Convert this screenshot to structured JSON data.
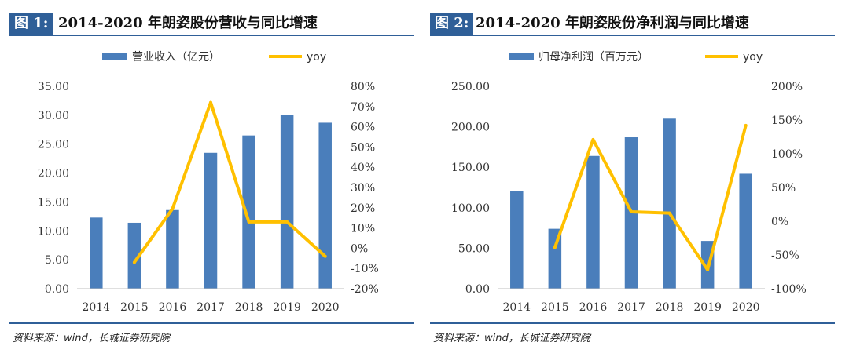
{
  "figures": [
    {
      "label": "图 1:",
      "title": "2014-2020 年朗姿股份营收与同比增速",
      "source": "资料来源：wind，长城证券研究院"
    },
    {
      "label": "图 2:",
      "title": "2014-2020 年朗姿股份净利润与同比增速",
      "source": "资料来源：wind，长城证券研究院"
    }
  ],
  "colors": {
    "bar": "#4a7ebb",
    "line": "#ffc000",
    "accent": "#2f5f98"
  },
  "chart_data": [
    {
      "type": "bar",
      "categories": [
        "2014",
        "2015",
        "2016",
        "2017",
        "2018",
        "2019",
        "2020"
      ],
      "series": [
        {
          "name": "营业收入（亿元）",
          "type": "bar",
          "axis": "left",
          "values": [
            12.3,
            11.4,
            13.6,
            23.5,
            26.5,
            30.0,
            28.7
          ]
        },
        {
          "name": "yoy",
          "type": "line",
          "axis": "right",
          "values": [
            null,
            -7.0,
            19.5,
            72.0,
            13.0,
            13.0,
            -4.0
          ]
        }
      ],
      "ylim": [
        0,
        35
      ],
      "yticks": [
        "0.00",
        "5.00",
        "10.00",
        "15.00",
        "20.00",
        "25.00",
        "30.00",
        "35.00"
      ],
      "y2lim": [
        -20,
        80
      ],
      "y2ticks": [
        "-20%",
        "-10%",
        "0%",
        "10%",
        "20%",
        "30%",
        "40%",
        "50%",
        "60%",
        "70%",
        "80%"
      ],
      "legend": "top"
    },
    {
      "type": "bar",
      "categories": [
        "2014",
        "2015",
        "2016",
        "2017",
        "2018",
        "2019",
        "2020"
      ],
      "series": [
        {
          "name": "归母净利润（百万元）",
          "type": "bar",
          "axis": "left",
          "values": [
            121,
            74,
            164,
            187,
            210,
            59,
            142
          ]
        },
        {
          "name": "yoy",
          "type": "line",
          "axis": "right",
          "values": [
            null,
            -39,
            121,
            14,
            12,
            -72,
            142
          ]
        }
      ],
      "ylim": [
        0,
        250
      ],
      "yticks": [
        "0.00",
        "50.00",
        "100.00",
        "150.00",
        "200.00",
        "250.00"
      ],
      "y2lim": [
        -100,
        200
      ],
      "y2ticks": [
        "-100%",
        "-50%",
        "0%",
        "50%",
        "100%",
        "150%",
        "200%"
      ],
      "legend": "top"
    }
  ]
}
